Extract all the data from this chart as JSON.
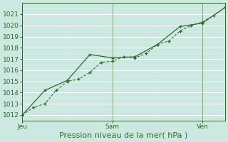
{
  "bg_color": "#cce8e0",
  "grid_color": "#ffffff",
  "grid_minor_color": "#ddf0ea",
  "line_color": "#2d6a2d",
  "ylim": [
    1011.5,
    1022.0
  ],
  "xlim": [
    0,
    108
  ],
  "xlabel": "Pression niveau de la mer( hPa )",
  "xtick_positions": [
    0,
    48,
    96
  ],
  "xtick_labels": [
    "Jeu",
    "Sam",
    "Ven"
  ],
  "ytick_vals": [
    1012,
    1013,
    1014,
    1015,
    1016,
    1017,
    1018,
    1019,
    1020,
    1021
  ],
  "vline_positions": [
    0,
    48,
    96
  ],
  "line1_x": [
    0,
    12,
    24,
    36,
    48,
    60,
    72,
    84,
    96,
    108
  ],
  "line1_y": [
    1012.0,
    1014.2,
    1015.1,
    1017.4,
    1017.1,
    1017.2,
    1018.3,
    1019.9,
    1020.2,
    1021.6
  ],
  "line2_x": [
    0,
    6,
    12,
    18,
    24,
    30,
    36,
    42,
    48,
    54,
    60,
    66,
    72,
    78,
    84,
    90,
    96,
    102,
    108
  ],
  "line2_y": [
    1012.0,
    1012.7,
    1013.0,
    1014.2,
    1015.0,
    1015.2,
    1015.8,
    1016.7,
    1016.8,
    1017.2,
    1017.1,
    1017.5,
    1018.3,
    1018.6,
    1019.5,
    1020.0,
    1020.3,
    1020.9,
    1021.6
  ],
  "font_color": "#2d6a2d",
  "tick_fontsize": 6.5,
  "xlabel_fontsize": 8
}
